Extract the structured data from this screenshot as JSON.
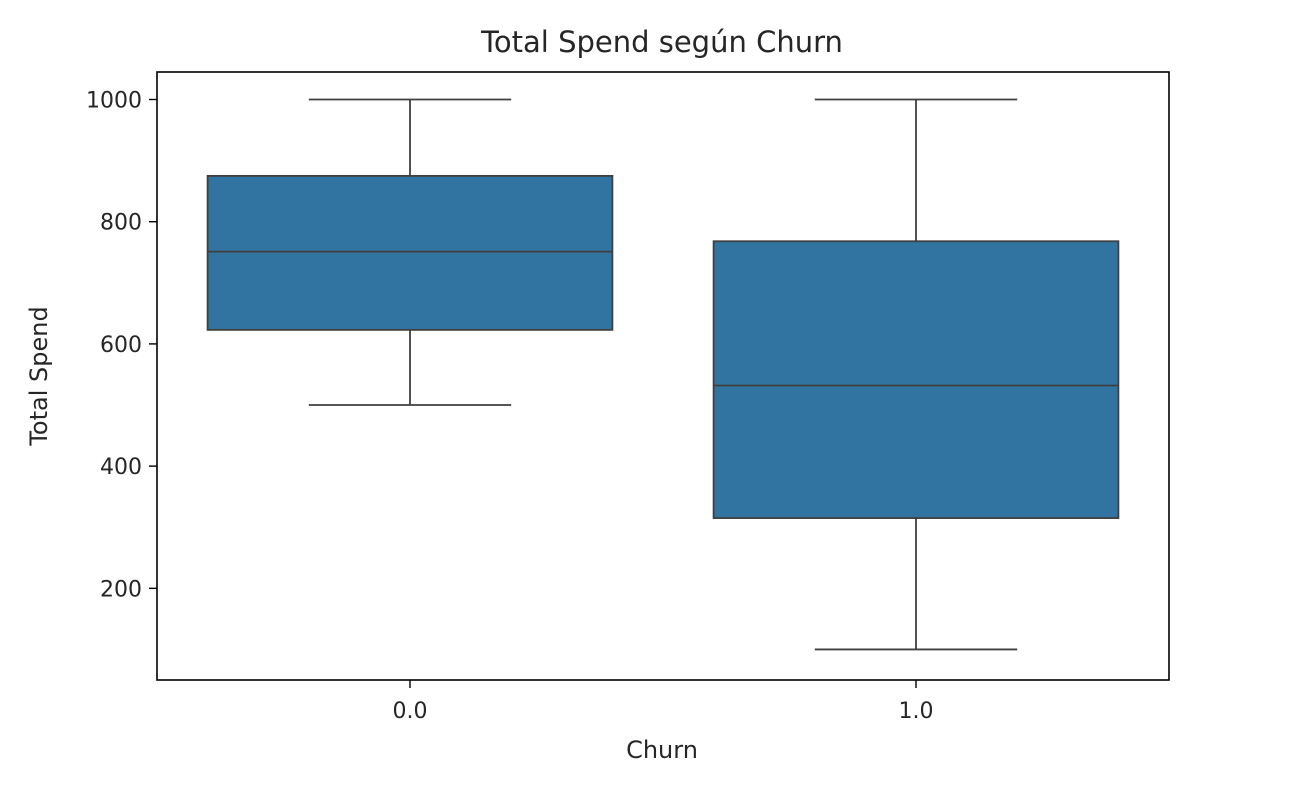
{
  "chart_data": {
    "type": "box",
    "title": "Total Spend según Churn",
    "xlabel": "Churn",
    "ylabel": "Total Spend",
    "ylim": [
      50,
      1045
    ],
    "y_ticks": [
      200,
      400,
      600,
      800,
      1000
    ],
    "y_tick_labels": [
      "200",
      "400",
      "600",
      "800",
      "1000"
    ],
    "categories": [
      "0.0",
      "1.0"
    ],
    "boxes": [
      {
        "category": "0.0",
        "whisker_low": 500,
        "q1": 623,
        "median": 751,
        "q3": 875,
        "whisker_high": 1000
      },
      {
        "category": "1.0",
        "whisker_low": 100,
        "q1": 315,
        "median": 532,
        "q3": 768,
        "whisker_high": 1000
      }
    ],
    "grid": false,
    "colors": {
      "box_fill": "#3274a1",
      "line": "#3f3f3f",
      "axis": "#000000"
    }
  }
}
